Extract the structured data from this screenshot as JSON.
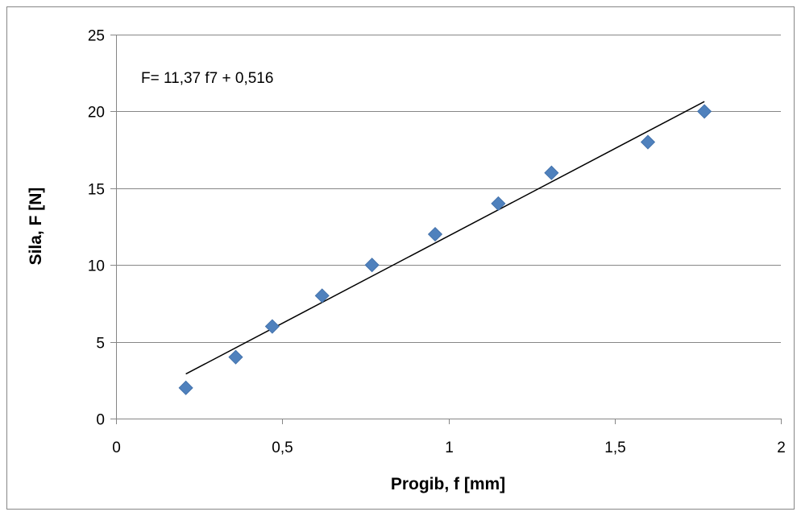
{
  "chart_data": {
    "type": "scatter",
    "xlabel": "Progib, f [mm]",
    "ylabel": "Sila, F [N]",
    "xlim": [
      0,
      2
    ],
    "ylim": [
      0,
      25
    ],
    "x_ticks": [
      "0",
      "0,5",
      "1",
      "1,5",
      "2"
    ],
    "y_ticks": [
      "0",
      "5",
      "10",
      "15",
      "20",
      "25"
    ],
    "x_tick_values": [
      0,
      0.5,
      1,
      1.5,
      2
    ],
    "y_tick_values": [
      0,
      5,
      10,
      15,
      20,
      25
    ],
    "grid": "horizontal",
    "annotation": "F= 11,37 f7 + 0,516",
    "series": [
      {
        "marker": "diamond",
        "color": "#4F81BD",
        "points": [
          {
            "x": 0.21,
            "y": 2
          },
          {
            "x": 0.36,
            "y": 4
          },
          {
            "x": 0.47,
            "y": 6
          },
          {
            "x": 0.62,
            "y": 8
          },
          {
            "x": 0.77,
            "y": 10
          },
          {
            "x": 0.96,
            "y": 12
          },
          {
            "x": 1.15,
            "y": 14
          },
          {
            "x": 1.31,
            "y": 16
          },
          {
            "x": 1.6,
            "y": 18
          },
          {
            "x": 1.77,
            "y": 20
          }
        ]
      }
    ],
    "trendline": {
      "type": "linear",
      "slope": 11.37,
      "intercept": 0.516,
      "x_range": [
        0.21,
        1.77
      ],
      "color": "#000000"
    },
    "gridline_color": "#868686",
    "border_color": "#868686"
  }
}
